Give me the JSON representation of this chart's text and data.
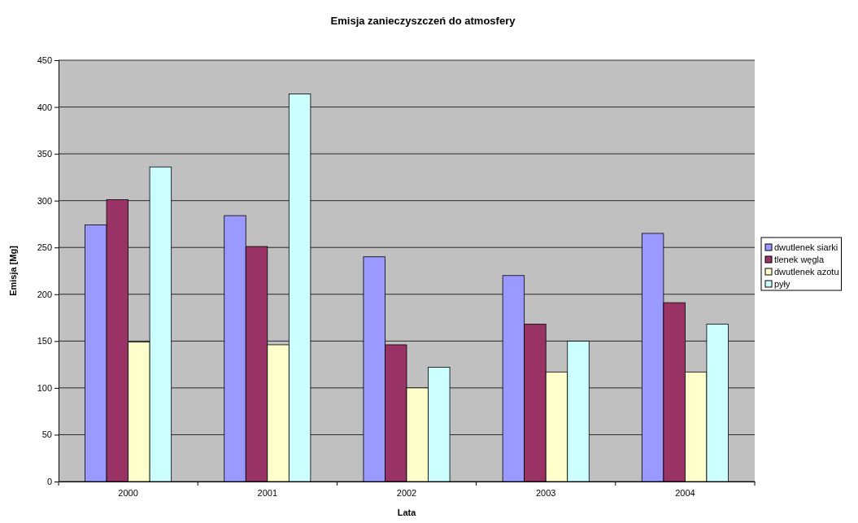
{
  "chart_data": {
    "type": "bar",
    "title": "Emisja zanieczyszczeń do atmosfery",
    "xlabel": "Lata",
    "ylabel": "Emisja [Mg]",
    "categories": [
      "2000",
      "2001",
      "2002",
      "2003",
      "2004"
    ],
    "series": [
      {
        "name": "dwutlenek siarki",
        "color": "#9999ff",
        "values": [
          274,
          284,
          240,
          220,
          265
        ]
      },
      {
        "name": "tlenek węgla",
        "color": "#993366",
        "values": [
          301,
          251,
          146,
          168,
          191
        ]
      },
      {
        "name": "dwutlenek azotu",
        "color": "#ffffcc",
        "values": [
          149,
          146,
          100,
          117,
          117
        ]
      },
      {
        "name": "pyły",
        "color": "#ccffff",
        "values": [
          336,
          414,
          122,
          150,
          168
        ]
      }
    ],
    "ylim": [
      0,
      450
    ],
    "yticks": [
      0,
      50,
      100,
      150,
      200,
      250,
      300,
      350,
      400,
      450
    ],
    "grid": "y",
    "legend": "right"
  }
}
